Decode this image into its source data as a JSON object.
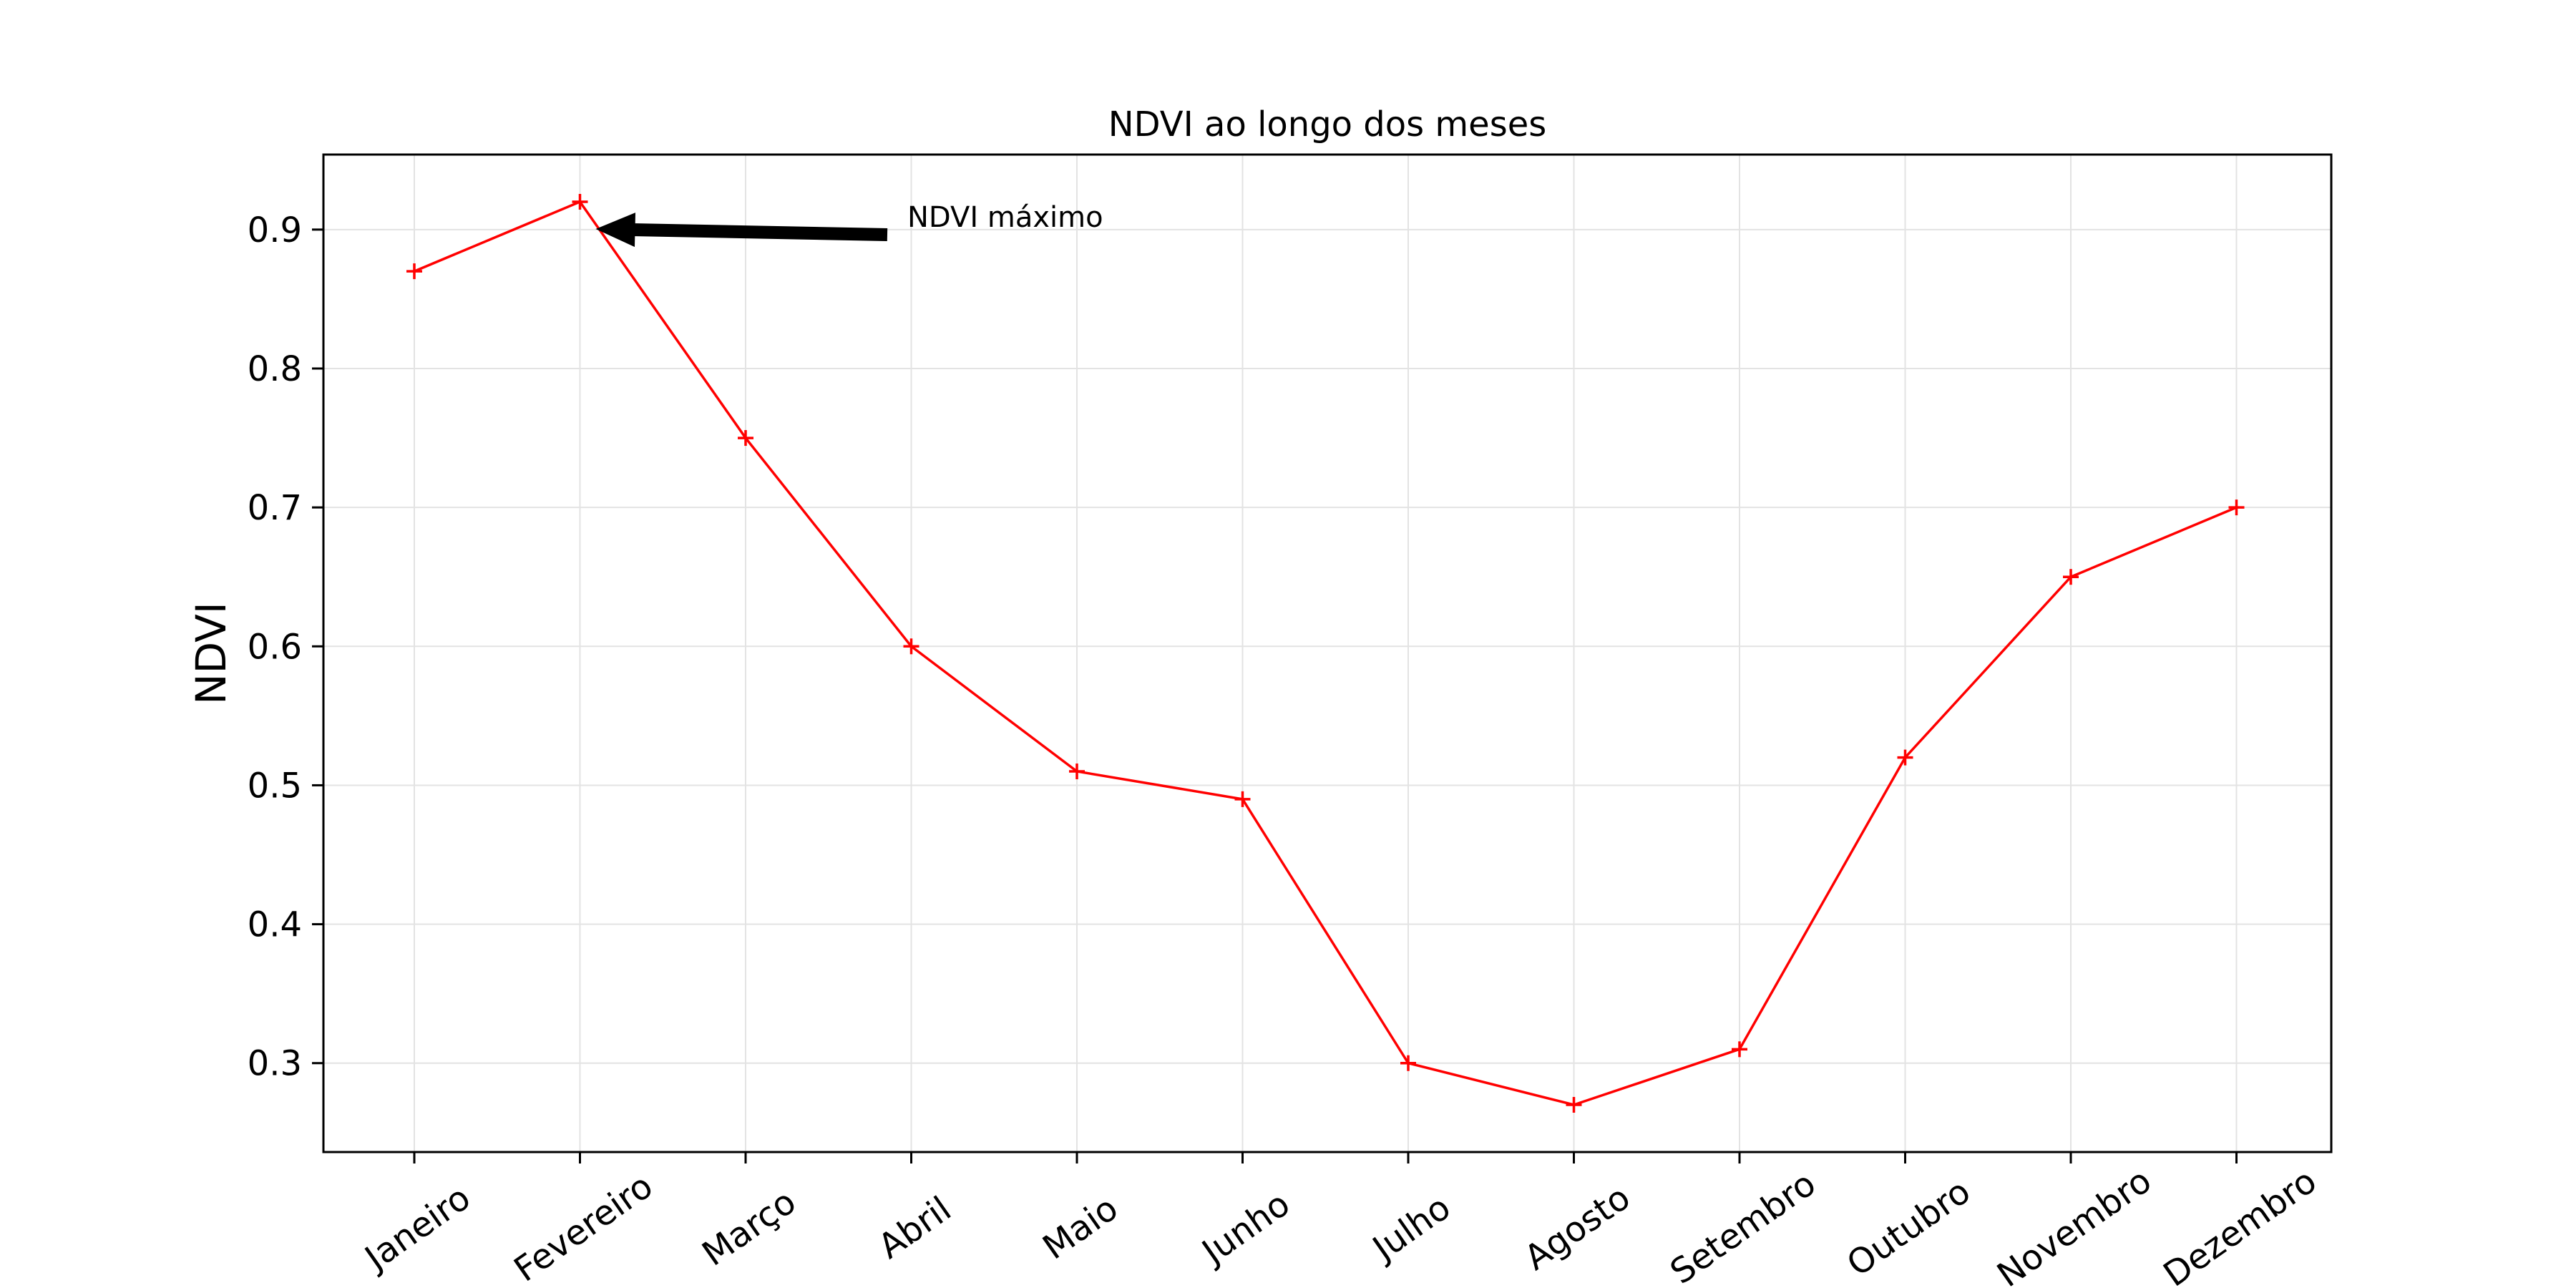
{
  "chart_data": {
    "type": "line",
    "title": "NDVI ao longo dos meses",
    "xlabel": "",
    "ylabel": "NDVI",
    "categories": [
      "Janeiro",
      "Fevereiro",
      "Março",
      "Abril",
      "Maio",
      "Junho",
      "Julho",
      "Agosto",
      "Setembro",
      "Outubro",
      "Novembro",
      "Dezembro"
    ],
    "series": [
      {
        "values": [
          0.87,
          0.92,
          0.75,
          0.6,
          0.51,
          0.49,
          0.3,
          0.27,
          0.31,
          0.52,
          0.65,
          0.7
        ]
      }
    ],
    "ylim": [
      0.236,
      0.954
    ],
    "yticks": [
      0.3,
      0.4,
      0.5,
      0.6,
      0.7,
      0.8,
      0.9
    ],
    "ytick_labels": [
      "0.3",
      "0.4",
      "0.5",
      "0.6",
      "0.7",
      "0.8",
      "0.9"
    ],
    "grid": true,
    "line_color": "#ff0000",
    "marker": "plus",
    "annotation": {
      "text": "NDVI máximo",
      "target_category": "Fevereiro",
      "target_value": 0.92,
      "arrow_color": "#000000"
    }
  }
}
